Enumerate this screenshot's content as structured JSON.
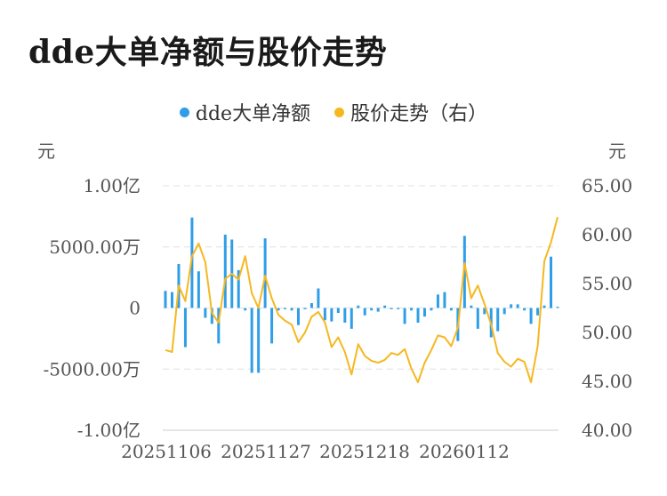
{
  "title": "dde大单净额与股价走势",
  "colors": {
    "bar": "#2f9ee8",
    "line": "#f5b820",
    "grid": "#e6e6e6",
    "text": "#555555"
  },
  "legend": [
    {
      "label": "dde大单净额",
      "color": "#2f9ee8"
    },
    {
      "label": "股价走势（右）",
      "color": "#f5b820"
    }
  ],
  "chart_data": {
    "type": "bar+line",
    "left_axis": {
      "unit": "元",
      "ylim": [
        -10000,
        10000
      ],
      "tick_labels": [
        "1.00亿",
        "5000.00万",
        "0",
        "-5000.00万",
        "-1.00亿"
      ]
    },
    "right_axis": {
      "unit": "元",
      "ylim": [
        40,
        65
      ],
      "tick_labels": [
        "65.00",
        "60.00",
        "55.00",
        "50.00",
        "45.00",
        "40.00"
      ]
    },
    "x_tick_labels": [
      "20251106",
      "20251127",
      "20251218",
      "20260112"
    ],
    "series": [
      {
        "name": "dde大单净额",
        "type": "bar",
        "axis": "left",
        "unit": "万元",
        "values": [
          1400,
          1300,
          3600,
          -3200,
          7400,
          3000,
          -800,
          -1300,
          -2900,
          6000,
          5600,
          3100,
          -200,
          -5300,
          -5300,
          5700,
          -2900,
          -200,
          -100,
          -200,
          -1400,
          -100,
          400,
          1600,
          -1000,
          -1100,
          -400,
          -1200,
          -1700,
          200,
          -600,
          -200,
          -300,
          200,
          -100,
          -100,
          -1300,
          -200,
          -1200,
          -700,
          -200,
          1100,
          1300,
          -200,
          -2700,
          5900,
          200,
          -1700,
          -500,
          -2400,
          -1900,
          -500,
          300,
          300,
          -200,
          -1300,
          -600,
          200,
          4200,
          100
        ]
      },
      {
        "name": "股价走势（右）",
        "type": "line",
        "axis": "right",
        "values": [
          48.2,
          48.0,
          54.8,
          53.2,
          57.8,
          59.1,
          57.2,
          52.0,
          51.0,
          55.5,
          56.0,
          55.4,
          57.8,
          54.0,
          52.5,
          55.8,
          53.5,
          51.8,
          51.2,
          50.8,
          49.0,
          50.0,
          51.6,
          52.1,
          51.0,
          48.5,
          49.5,
          48.0,
          45.7,
          48.8,
          47.6,
          47.1,
          46.9,
          47.2,
          47.9,
          47.7,
          48.3,
          46.3,
          44.9,
          46.9,
          48.2,
          49.7,
          49.5,
          48.6,
          50.5,
          57.1,
          53.5,
          54.8,
          52.9,
          50.8,
          47.9,
          47.0,
          46.5,
          47.3,
          47.0,
          44.9,
          48.6,
          57.3,
          59.2,
          61.8
        ]
      }
    ]
  }
}
